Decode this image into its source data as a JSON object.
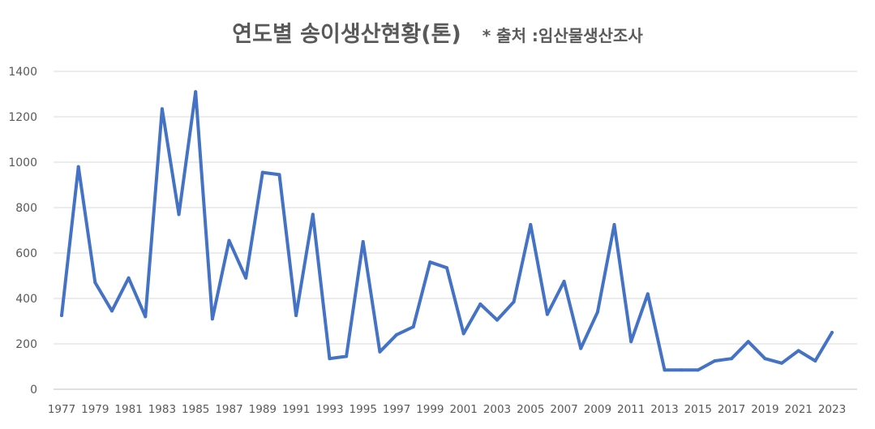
{
  "chart_data": {
    "type": "line",
    "title": "연도별 송이생산현황(톤)",
    "source_note": "* 출처 :임산물생산조사",
    "xlabel": "",
    "ylabel": "",
    "ylim": [
      0,
      1400
    ],
    "yticks": [
      "0",
      "200",
      "400",
      "600",
      "800",
      "1000",
      "1200",
      "1400"
    ],
    "grid": true,
    "legend": "none",
    "line_color": "#4472C4",
    "x": [
      1977,
      1978,
      1979,
      1980,
      1981,
      1982,
      1983,
      1984,
      1985,
      1986,
      1987,
      1988,
      1989,
      1990,
      1991,
      1992,
      1993,
      1994,
      1995,
      1996,
      1997,
      1998,
      1999,
      2000,
      2001,
      2002,
      2003,
      2004,
      2005,
      2006,
      2007,
      2008,
      2009,
      2010,
      2011,
      2012,
      2013,
      2014,
      2015,
      2016,
      2017,
      2018,
      2019,
      2020,
      2021,
      2022,
      2023
    ],
    "xticks": [
      "1977",
      "1979",
      "1981",
      "1983",
      "1985",
      "1987",
      "1989",
      "1991",
      "1993",
      "1995",
      "1997",
      "1999",
      "2001",
      "2003",
      "2005",
      "2007",
      "2009",
      "2011",
      "2013",
      "2015",
      "2017",
      "2019",
      "2021",
      "2023"
    ],
    "series": [
      {
        "values": [
          325,
          980,
          470,
          345,
          490,
          320,
          1235,
          770,
          1310,
          310,
          655,
          490,
          955,
          945,
          325,
          770,
          135,
          145,
          650,
          165,
          240,
          275,
          560,
          535,
          245,
          375,
          305,
          385,
          725,
          330,
          475,
          180,
          340,
          725,
          210,
          420,
          85,
          85,
          85,
          125,
          135,
          210,
          135,
          115,
          170,
          125,
          250
        ]
      }
    ]
  }
}
